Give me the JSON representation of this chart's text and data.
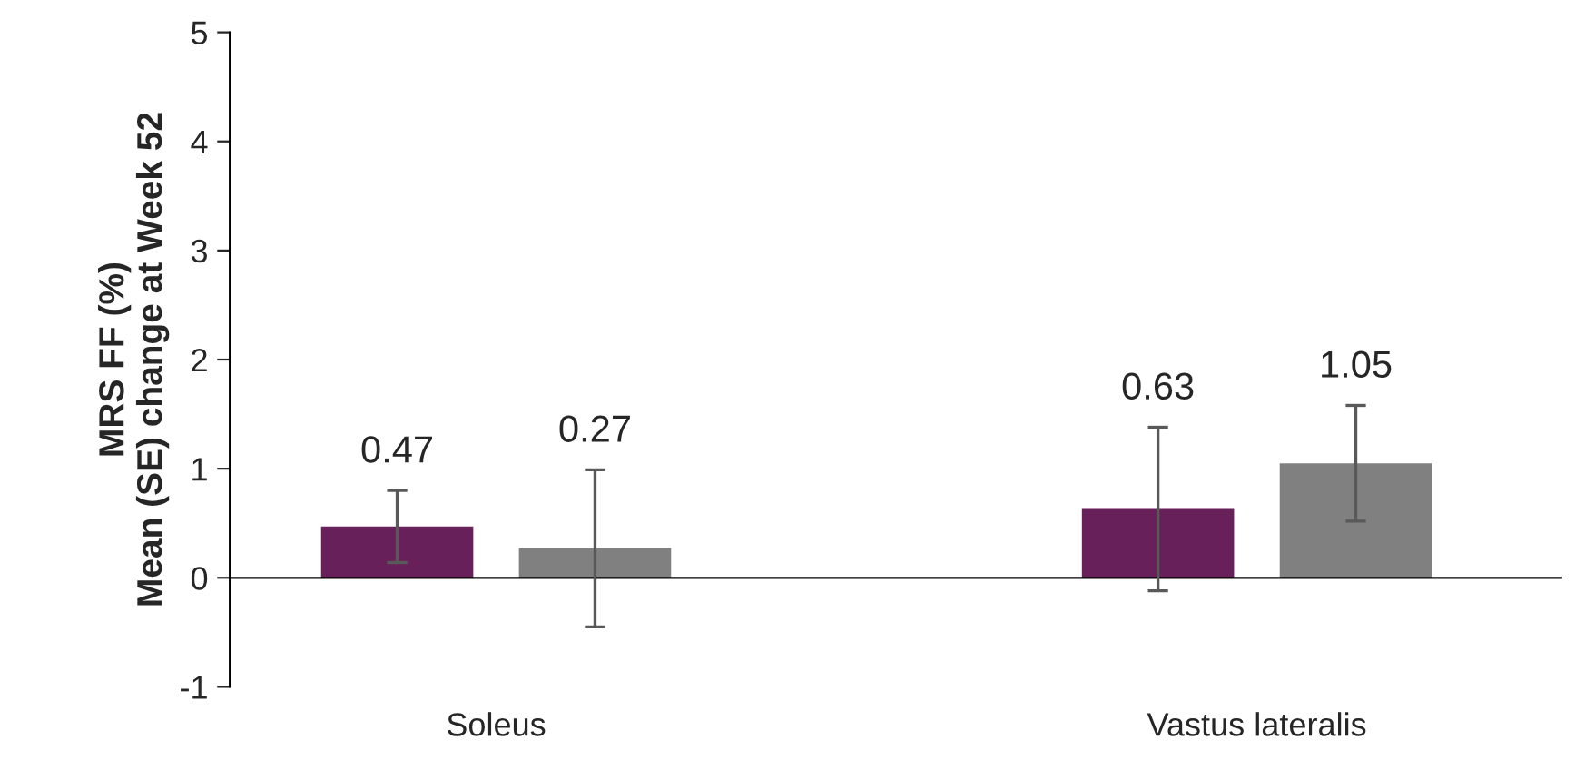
{
  "chart_data": {
    "type": "bar",
    "ylabel": "MRS FF (%)\nMean (SE) change at Week 52",
    "categories": [
      "Soleus",
      "Vastus lateralis"
    ],
    "series": [
      {
        "color": "#68205a",
        "values": [
          0.47,
          0.63
        ],
        "errors": [
          0.33,
          0.75
        ]
      },
      {
        "color": "#808080",
        "values": [
          0.27,
          1.05
        ],
        "errors": [
          0.72,
          0.53
        ]
      }
    ],
    "ylim": [
      -1,
      5
    ],
    "yticks": [
      -1,
      0,
      1,
      2,
      3,
      4,
      5
    ],
    "legend": false,
    "data_labels": true
  }
}
